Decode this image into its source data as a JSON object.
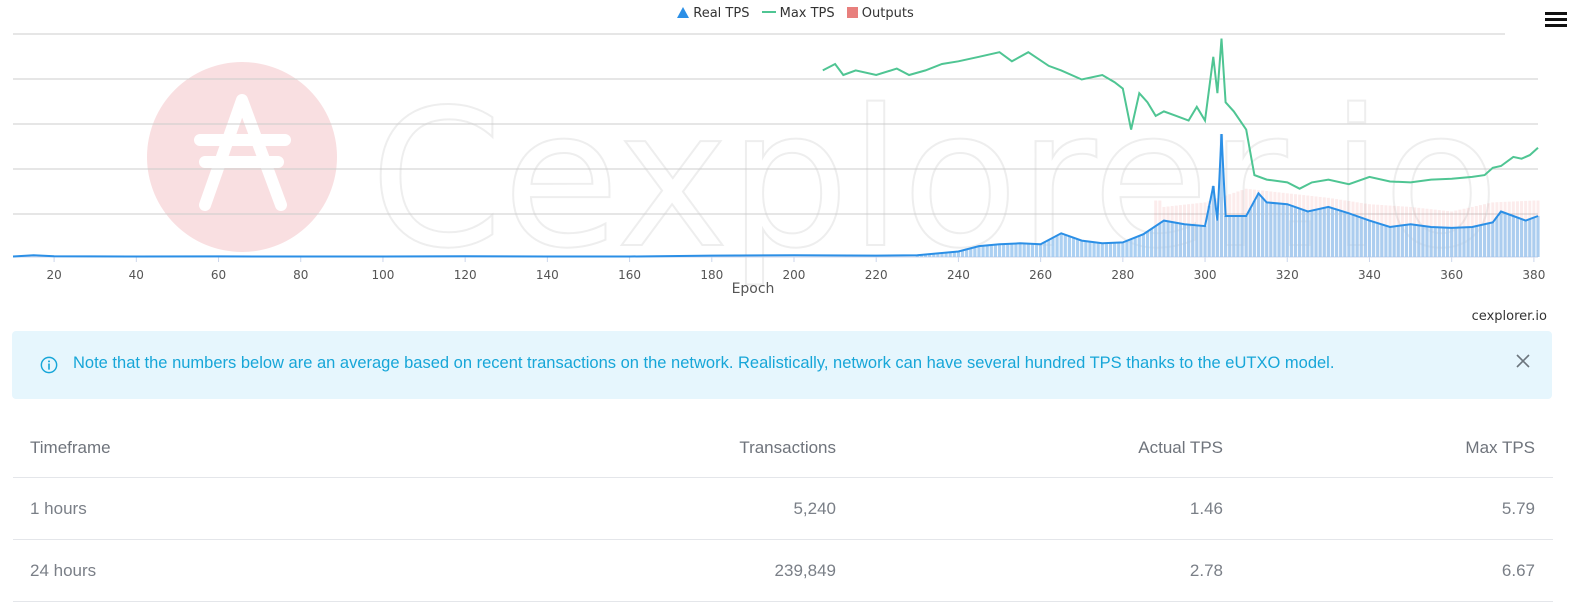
{
  "chart": {
    "legend": {
      "real_tps": "Real TPS",
      "max_tps": "Max TPS",
      "outputs": "Outputs"
    },
    "watermark": "Cexplorer.io",
    "credit": "cexplorer.io",
    "menu_icon": "hamburger-menu-icon"
  },
  "chart_data": {
    "type": "line",
    "xlabel": "Epoch",
    "ylabel": "",
    "xlim": [
      10,
      381
    ],
    "x_ticks": [
      20,
      40,
      60,
      80,
      100,
      120,
      140,
      160,
      180,
      200,
      220,
      240,
      260,
      280,
      300,
      320,
      340,
      360,
      380
    ],
    "y_tick_labels_visible": false,
    "grid": true,
    "legend_position": "top-center",
    "series": [
      {
        "name": "Real TPS",
        "style": "area+line",
        "color": "#2b8fe6",
        "points": [
          [
            10,
            0.5
          ],
          [
            15,
            2
          ],
          [
            20,
            0.8
          ],
          [
            40,
            0.6
          ],
          [
            60,
            0.7
          ],
          [
            80,
            0.6
          ],
          [
            100,
            0.6
          ],
          [
            120,
            0.8
          ],
          [
            140,
            0.6
          ],
          [
            160,
            0.6
          ],
          [
            180,
            1.5
          ],
          [
            200,
            2
          ],
          [
            220,
            1.5
          ],
          [
            230,
            2
          ],
          [
            240,
            6
          ],
          [
            245,
            12
          ],
          [
            250,
            14
          ],
          [
            255,
            15
          ],
          [
            260,
            14
          ],
          [
            265,
            26
          ],
          [
            270,
            18
          ],
          [
            275,
            15
          ],
          [
            280,
            16
          ],
          [
            285,
            25
          ],
          [
            290,
            40
          ],
          [
            295,
            36
          ],
          [
            300,
            34
          ],
          [
            302,
            78
          ],
          [
            303,
            40
          ],
          [
            304,
            135
          ],
          [
            305,
            45
          ],
          [
            310,
            45
          ],
          [
            313,
            70
          ],
          [
            315,
            60
          ],
          [
            320,
            58
          ],
          [
            325,
            50
          ],
          [
            330,
            55
          ],
          [
            335,
            48
          ],
          [
            340,
            40
          ],
          [
            345,
            33
          ],
          [
            350,
            36
          ],
          [
            355,
            33
          ],
          [
            360,
            32
          ],
          [
            365,
            33
          ],
          [
            370,
            38
          ],
          [
            372,
            50
          ],
          [
            375,
            45
          ],
          [
            378,
            40
          ],
          [
            381,
            45
          ]
        ]
      },
      {
        "name": "Max TPS",
        "style": "line",
        "color": "#4fc593",
        "points": [
          [
            207,
            205
          ],
          [
            210,
            212
          ],
          [
            212,
            200
          ],
          [
            215,
            205
          ],
          [
            220,
            200
          ],
          [
            225,
            207
          ],
          [
            228,
            200
          ],
          [
            232,
            205
          ],
          [
            236,
            212
          ],
          [
            240,
            215
          ],
          [
            245,
            220
          ],
          [
            250,
            225
          ],
          [
            253,
            215
          ],
          [
            257,
            225
          ],
          [
            262,
            210
          ],
          [
            265,
            205
          ],
          [
            270,
            195
          ],
          [
            275,
            200
          ],
          [
            278,
            192
          ],
          [
            280,
            185
          ],
          [
            282,
            140
          ],
          [
            284,
            180
          ],
          [
            286,
            170
          ],
          [
            288,
            155
          ],
          [
            290,
            160
          ],
          [
            293,
            155
          ],
          [
            296,
            150
          ],
          [
            298,
            165
          ],
          [
            300,
            150
          ],
          [
            302,
            220
          ],
          [
            303,
            180
          ],
          [
            304,
            240
          ],
          [
            305,
            170
          ],
          [
            307,
            160
          ],
          [
            310,
            140
          ],
          [
            312,
            90
          ],
          [
            315,
            85
          ],
          [
            320,
            82
          ],
          [
            323,
            75
          ],
          [
            326,
            82
          ],
          [
            330,
            85
          ],
          [
            335,
            80
          ],
          [
            340,
            88
          ],
          [
            345,
            83
          ],
          [
            350,
            82
          ],
          [
            355,
            85
          ],
          [
            360,
            86
          ],
          [
            365,
            88
          ],
          [
            368,
            90
          ],
          [
            370,
            98
          ],
          [
            372,
            100
          ],
          [
            375,
            110
          ],
          [
            377,
            108
          ],
          [
            379,
            112
          ],
          [
            381,
            120
          ]
        ]
      },
      {
        "name": "Outputs",
        "style": "bar",
        "color": "#e87f7d",
        "points": [
          [
            290,
            55
          ],
          [
            300,
            60
          ],
          [
            310,
            75
          ],
          [
            320,
            70
          ],
          [
            330,
            65
          ],
          [
            340,
            58
          ],
          [
            350,
            55
          ],
          [
            360,
            50
          ],
          [
            370,
            60
          ],
          [
            380,
            62
          ]
        ]
      }
    ]
  },
  "note": {
    "text": "Note that the numbers below are an average based on recent transactions on the network. Realistically, network can have several hundred TPS thanks to the eUTXO model.",
    "icon": "info-circle-icon",
    "close_icon": "close-icon"
  },
  "table": {
    "headers": [
      "Timeframe",
      "Transactions",
      "Actual TPS",
      "Max TPS"
    ],
    "rows": [
      [
        "1 hours",
        "5,240",
        "1.46",
        "5.79"
      ],
      [
        "24 hours",
        "239,849",
        "2.78",
        "6.67"
      ]
    ]
  }
}
